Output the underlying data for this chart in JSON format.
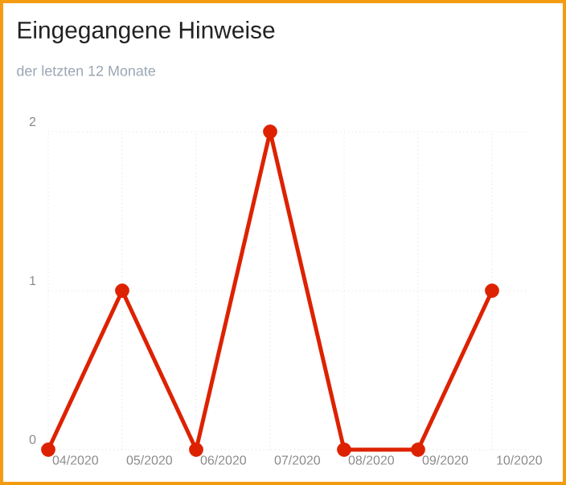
{
  "chart_data": {
    "type": "line",
    "title": "Eingegangene Hinweise",
    "subtitle": "der letzten 12 Monate",
    "categories": [
      "04/2020",
      "05/2020",
      "06/2020",
      "07/2020",
      "08/2020",
      "09/2020",
      "10/2020"
    ],
    "values": [
      0,
      1,
      0,
      2,
      0,
      0,
      1
    ],
    "color": "#dd2200",
    "ylim": [
      0,
      2
    ],
    "yticks": [
      0,
      1,
      2
    ],
    "grid": true,
    "marker": "circle",
    "line_style": "solid"
  }
}
